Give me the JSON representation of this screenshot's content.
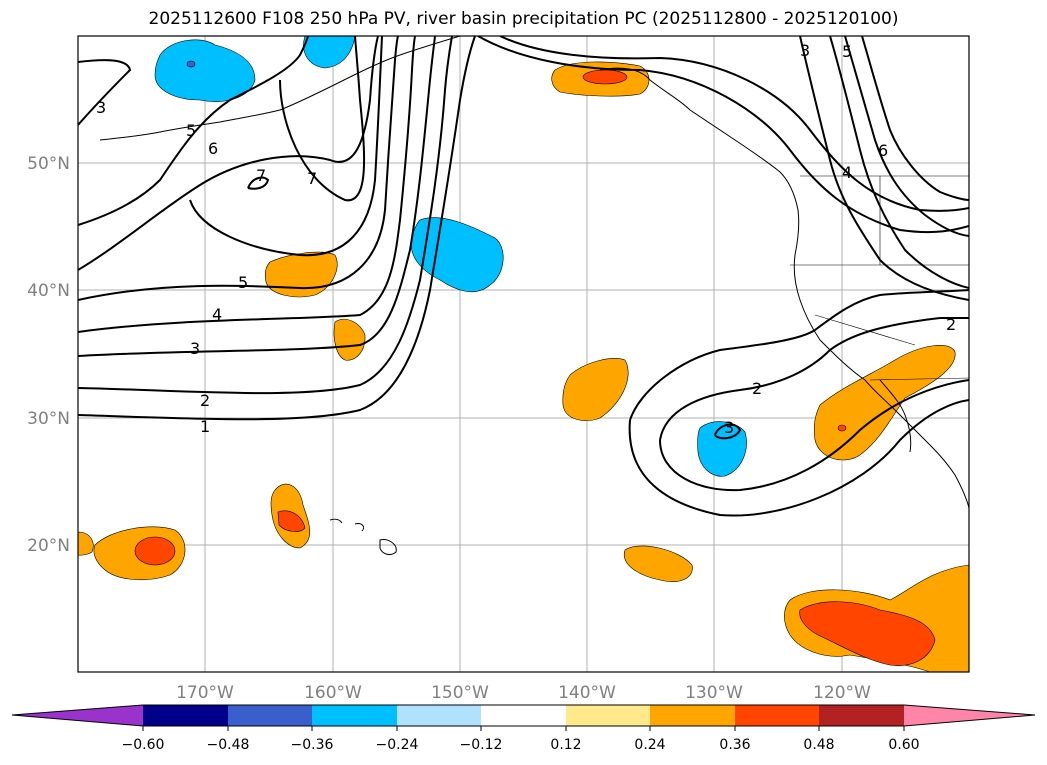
{
  "title": "2025112600 F108 250 hPa PV, river basin precipitation PC (2025112800 - 2025120100)",
  "map": {
    "projection": "PlateCarree",
    "lon_range": [
      -180,
      -110
    ],
    "lat_range": [
      10,
      60
    ],
    "lat_ticks": [
      {
        "lat": 50,
        "label": "50°N"
      },
      {
        "lat": 40,
        "label": "40°N"
      },
      {
        "lat": 30,
        "label": "30°N"
      },
      {
        "lat": 20,
        "label": "20°N"
      }
    ],
    "lon_ticks": [
      {
        "lon": -170,
        "label": "170°W"
      },
      {
        "lon": -160,
        "label": "160°W"
      },
      {
        "lon": -150,
        "label": "150°W"
      },
      {
        "lon": -140,
        "label": "140°W"
      },
      {
        "lon": -130,
        "label": "130°W"
      },
      {
        "lon": -120,
        "label": "120°W"
      }
    ],
    "pv_contour_labels": [
      "3",
      "5",
      "6",
      "7",
      "7",
      "5",
      "4",
      "3",
      "2",
      "1",
      "2",
      "3",
      "3",
      "5",
      "6",
      "4",
      "2"
    ]
  },
  "colorbar": {
    "ticks": [
      "−0.60",
      "−0.48",
      "−0.36",
      "−0.24",
      "−0.12",
      "0.12",
      "0.24",
      "0.36",
      "0.48",
      "0.60"
    ],
    "colors": [
      "#9933cc",
      "#00008b",
      "#3a5fcd",
      "#00bfff",
      "#b0e2ff",
      "#ffffff",
      "#ffe98a",
      "#ffa500",
      "#ff4500",
      "#b22222",
      "#ff85a8"
    ]
  }
}
